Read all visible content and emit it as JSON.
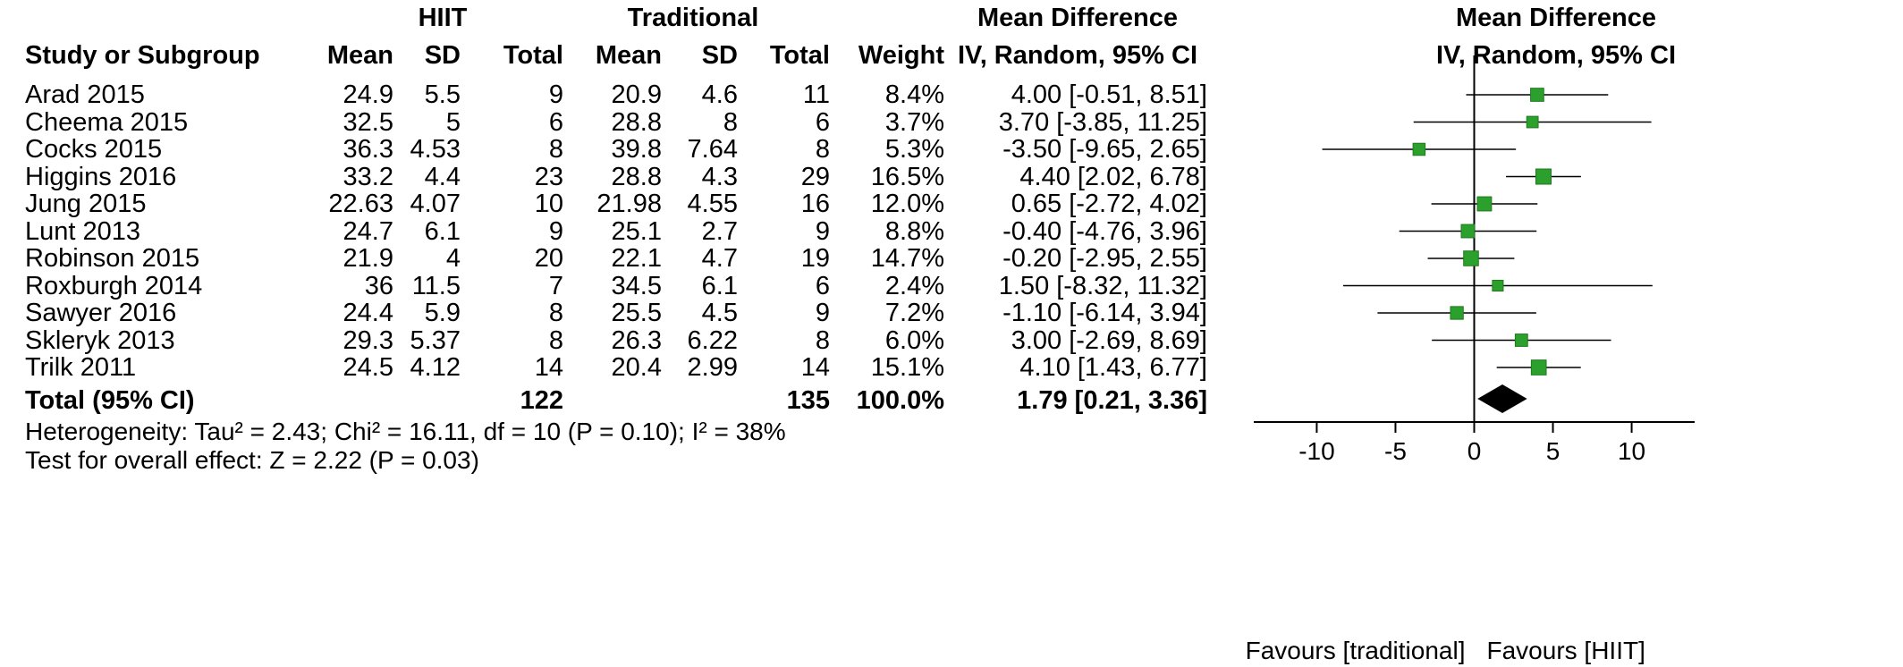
{
  "headers": {
    "group1": "HIIT",
    "group2": "Traditional",
    "md_top": "Mean Difference",
    "md_sub": "IV, Random, 95% CI",
    "plot_top": "Mean Difference",
    "plot_sub": "IV, Random, 95% CI",
    "study": "Study or Subgroup",
    "mean1": "Mean",
    "sd1": "SD",
    "total1": "Total",
    "mean2": "Mean",
    "sd2": "SD",
    "total2": "Total",
    "weight": "Weight"
  },
  "studies": [
    {
      "name": "Arad 2015",
      "m1": "24.9",
      "sd1": "5.5",
      "n1": "9",
      "m2": "20.9",
      "sd2": "4.6",
      "n2": "11",
      "weight": "8.4%",
      "ci_text": "4.00 [-0.51, 8.51]"
    },
    {
      "name": "Cheema 2015",
      "m1": "32.5",
      "sd1": "5",
      "n1": "6",
      "m2": "28.8",
      "sd2": "8",
      "n2": "6",
      "weight": "3.7%",
      "ci_text": "3.70 [-3.85, 11.25]"
    },
    {
      "name": "Cocks 2015",
      "m1": "36.3",
      "sd1": "4.53",
      "n1": "8",
      "m2": "39.8",
      "sd2": "7.64",
      "n2": "8",
      "weight": "5.3%",
      "ci_text": "-3.50 [-9.65, 2.65]"
    },
    {
      "name": "Higgins 2016",
      "m1": "33.2",
      "sd1": "4.4",
      "n1": "23",
      "m2": "28.8",
      "sd2": "4.3",
      "n2": "29",
      "weight": "16.5%",
      "ci_text": "4.40 [2.02, 6.78]"
    },
    {
      "name": "Jung 2015",
      "m1": "22.63",
      "sd1": "4.07",
      "n1": "10",
      "m2": "21.98",
      "sd2": "4.55",
      "n2": "16",
      "weight": "12.0%",
      "ci_text": "0.65 [-2.72, 4.02]"
    },
    {
      "name": "Lunt 2013",
      "m1": "24.7",
      "sd1": "6.1",
      "n1": "9",
      "m2": "25.1",
      "sd2": "2.7",
      "n2": "9",
      "weight": "8.8%",
      "ci_text": "-0.40 [-4.76, 3.96]"
    },
    {
      "name": "Robinson 2015",
      "m1": "21.9",
      "sd1": "4",
      "n1": "20",
      "m2": "22.1",
      "sd2": "4.7",
      "n2": "19",
      "weight": "14.7%",
      "ci_text": "-0.20 [-2.95, 2.55]"
    },
    {
      "name": "Roxburgh 2014",
      "m1": "36",
      "sd1": "11.5",
      "n1": "7",
      "m2": "34.5",
      "sd2": "6.1",
      "n2": "6",
      "weight": "2.4%",
      "ci_text": "1.50 [-8.32, 11.32]"
    },
    {
      "name": "Sawyer 2016",
      "m1": "24.4",
      "sd1": "5.9",
      "n1": "8",
      "m2": "25.5",
      "sd2": "4.5",
      "n2": "9",
      "weight": "7.2%",
      "ci_text": "-1.10 [-6.14, 3.94]"
    },
    {
      "name": "Skleryk 2013",
      "m1": "29.3",
      "sd1": "5.37",
      "n1": "8",
      "m2": "26.3",
      "sd2": "6.22",
      "n2": "8",
      "weight": "6.0%",
      "ci_text": "3.00 [-2.69, 8.69]"
    },
    {
      "name": "Trilk 2011",
      "m1": "24.5",
      "sd1": "4.12",
      "n1": "14",
      "m2": "20.4",
      "sd2": "2.99",
      "n2": "14",
      "weight": "15.1%",
      "ci_text": "4.10 [1.43, 6.77]"
    }
  ],
  "total": {
    "label": "Total (95% CI)",
    "n1": "122",
    "n2": "135",
    "weight": "100.0%",
    "ci_text": "1.79 [0.21, 3.36]"
  },
  "footer": {
    "heterogeneity": "Heterogeneity: Tau² = 2.43; Chi² = 16.11, df = 10 (P = 0.10); I² = 38%",
    "overall": "Test for overall effect: Z = 2.22 (P = 0.03)"
  },
  "chart_data": {
    "type": "forest",
    "title": "Mean Difference",
    "subtitle": "IV, Random, 95% CI",
    "xlim": [
      -14,
      14
    ],
    "xticks": [
      -10,
      -5,
      0,
      5,
      10
    ],
    "xtick_labels": [
      "-10",
      "-5",
      "0",
      "5",
      "10"
    ],
    "favours_left": "Favours [traditional]",
    "favours_right": "Favours [HIIT]",
    "marker_color": "#2ca02c",
    "diamond_color": "#000000",
    "studies": [
      {
        "name": "Arad 2015",
        "est": 4.0,
        "lo": -0.51,
        "hi": 8.51,
        "weight": 8.4
      },
      {
        "name": "Cheema 2015",
        "est": 3.7,
        "lo": -3.85,
        "hi": 11.25,
        "weight": 3.7
      },
      {
        "name": "Cocks 2015",
        "est": -3.5,
        "lo": -9.65,
        "hi": 2.65,
        "weight": 5.3
      },
      {
        "name": "Higgins 2016",
        "est": 4.4,
        "lo": 2.02,
        "hi": 6.78,
        "weight": 16.5
      },
      {
        "name": "Jung 2015",
        "est": 0.65,
        "lo": -2.72,
        "hi": 4.02,
        "weight": 12.0
      },
      {
        "name": "Lunt 2013",
        "est": -0.4,
        "lo": -4.76,
        "hi": 3.96,
        "weight": 8.8
      },
      {
        "name": "Robinson 2015",
        "est": -0.2,
        "lo": -2.95,
        "hi": 2.55,
        "weight": 14.7
      },
      {
        "name": "Roxburgh 2014",
        "est": 1.5,
        "lo": -8.32,
        "hi": 11.32,
        "weight": 2.4
      },
      {
        "name": "Sawyer 2016",
        "est": -1.1,
        "lo": -6.14,
        "hi": 3.94,
        "weight": 7.2
      },
      {
        "name": "Skleryk 2013",
        "est": 3.0,
        "lo": -2.69,
        "hi": 8.69,
        "weight": 6.0
      },
      {
        "name": "Trilk 2011",
        "est": 4.1,
        "lo": 1.43,
        "hi": 6.77,
        "weight": 15.1
      }
    ],
    "overall": {
      "est": 1.79,
      "lo": 0.21,
      "hi": 3.36
    }
  }
}
